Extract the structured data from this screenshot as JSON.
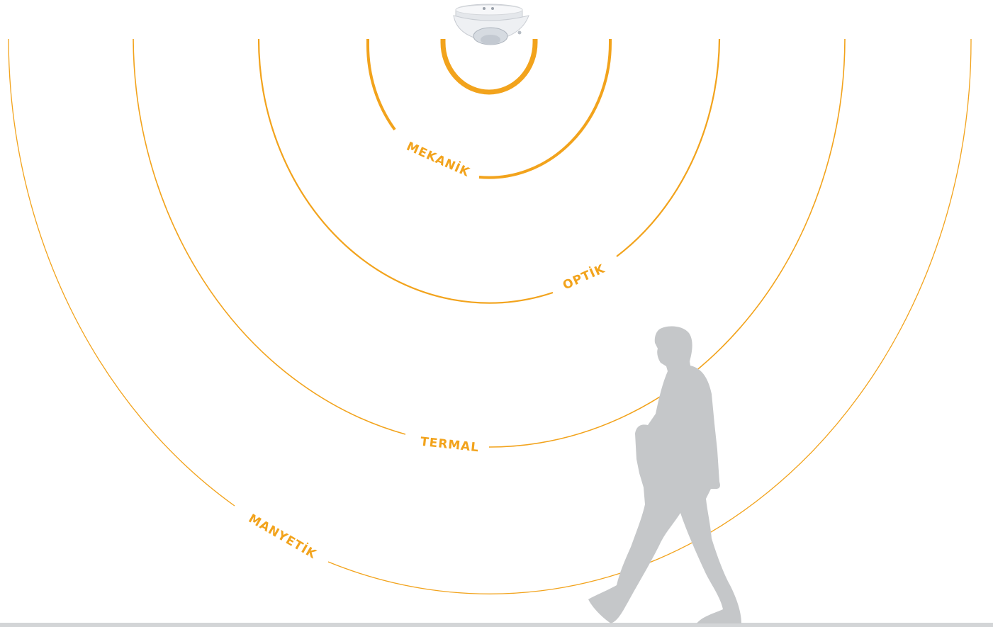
{
  "diagram": {
    "labels": {
      "mekanik": "MEKANİK",
      "optik": "OPTİK",
      "termal": "TERMAL",
      "manyetik": "MANYETİK"
    },
    "colors": {
      "arc": "#F2A31C",
      "label": "#F2A31C",
      "sensor_body": "#EEF0F3",
      "silhouette": "#C5C7C9",
      "floor": "#D3D5D7",
      "background": "#FFFFFF"
    },
    "icons": {
      "sensor": "ceiling-motion-sensor-icon",
      "person": "walking-person-silhouette-icon"
    }
  }
}
